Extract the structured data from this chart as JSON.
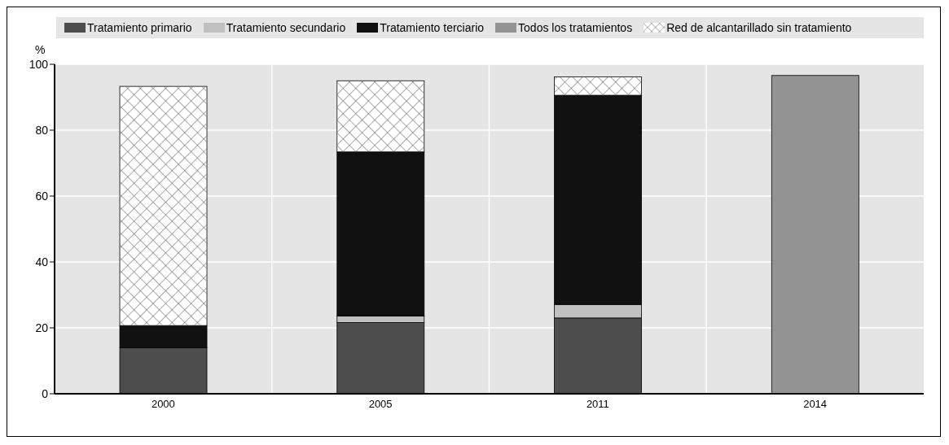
{
  "chart_data": {
    "type": "bar",
    "stacked": true,
    "ylabel": "%",
    "categories": [
      "2000",
      "2005",
      "2011",
      "2014"
    ],
    "series": [
      {
        "name": "Tratamiento primario",
        "color": "#4d4d4d",
        "values": [
          14.0,
          21.6,
          23.0,
          null
        ]
      },
      {
        "name": "Tratamiento secundario",
        "color": "#c0c0c0",
        "values": [
          0,
          2.0,
          4.1,
          null
        ]
      },
      {
        "name": "Tratamiento terciario",
        "color": "#111111",
        "values": [
          6.7,
          49.8,
          63.5,
          null
        ]
      },
      {
        "name": "Todos los tratamientos",
        "color": "#939393",
        "values": [
          null,
          null,
          null,
          96.6
        ]
      },
      {
        "name": "Red de alcantarillado sin tratamiento",
        "color": "#ffffff",
        "values": [
          72.6,
          21.6,
          5.6,
          null
        ]
      }
    ],
    "ylim": [
      0,
      100
    ],
    "yticks": [
      0,
      20,
      40,
      60,
      80,
      100
    ],
    "grid": true,
    "legend": "top"
  }
}
